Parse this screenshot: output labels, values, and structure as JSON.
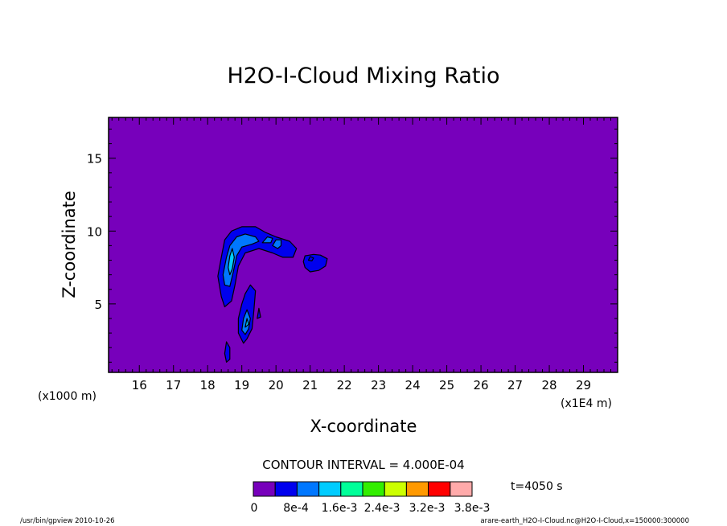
{
  "chart_data": {
    "type": "contour",
    "title": "H2O-I-Cloud Mixing Ratio",
    "xlabel": "X-coordinate",
    "ylabel": "Z-coordinate",
    "x_unit_label": "(x1E4 m)",
    "y_unit_label": "(x1000 m)",
    "xlim": [
      15.1,
      30.0
    ],
    "ylim": [
      0.3,
      17.8
    ],
    "x_ticks": [
      "16",
      "17",
      "18",
      "19",
      "20",
      "21",
      "22",
      "23",
      "24",
      "25",
      "26",
      "27",
      "28",
      "29"
    ],
    "y_ticks": [
      "5",
      "10",
      "15"
    ],
    "contour_interval_text": "CONTOUR INTERVAL = 4.000E-04",
    "time_text": "t=4050 s",
    "footer_left": "/usr/bin/gpview  2010-10-26",
    "footer_right": "arare-earth_H2O-I-Cloud.nc@H2O-I-Cloud,x=150000:300000",
    "colorbar_labels": [
      "0",
      "8e-4",
      "1.6e-3",
      "2.4e-3",
      "3.2e-3",
      "3.8e-3"
    ],
    "colors": {
      "background_level": "#7700bb",
      "levels": [
        "#7700bb",
        "#0000ee",
        "#0077ff",
        "#00ccff",
        "#00ff99",
        "#33ee00",
        "#ccff00",
        "#ff9900",
        "#ff0000",
        "#ffaaaa"
      ]
    },
    "contour_regions": [
      {
        "level": 1,
        "points": [
          [
            18.4,
            5.5
          ],
          [
            18.3,
            6.9
          ],
          [
            18.4,
            8.2
          ],
          [
            18.5,
            9.4
          ],
          [
            18.7,
            10.0
          ],
          [
            19.0,
            10.3
          ],
          [
            19.4,
            10.3
          ],
          [
            19.7,
            9.9
          ],
          [
            20.0,
            9.6
          ],
          [
            20.4,
            9.3
          ],
          [
            20.6,
            8.8
          ],
          [
            20.5,
            8.2
          ],
          [
            20.2,
            8.2
          ],
          [
            19.9,
            8.5
          ],
          [
            19.5,
            8.8
          ],
          [
            19.1,
            8.5
          ],
          [
            18.9,
            7.6
          ],
          [
            18.8,
            6.3
          ],
          [
            18.7,
            5.2
          ],
          [
            18.5,
            4.8
          ]
        ]
      },
      {
        "level": 1,
        "points": [
          [
            18.9,
            3.0
          ],
          [
            18.9,
            4.0
          ],
          [
            19.0,
            5.0
          ],
          [
            19.1,
            5.7
          ],
          [
            19.25,
            6.3
          ],
          [
            19.4,
            5.9
          ],
          [
            19.35,
            4.5
          ],
          [
            19.3,
            3.3
          ],
          [
            19.15,
            2.6
          ],
          [
            19.05,
            2.3
          ]
        ]
      },
      {
        "level": 1,
        "points": [
          [
            18.55,
            1.0
          ],
          [
            18.5,
            1.6
          ],
          [
            18.55,
            2.4
          ],
          [
            18.65,
            2.0
          ],
          [
            18.65,
            1.2
          ]
        ]
      },
      {
        "level": 1,
        "points": [
          [
            20.8,
            7.9
          ],
          [
            20.85,
            8.3
          ],
          [
            21.1,
            8.4
          ],
          [
            21.3,
            8.35
          ],
          [
            21.5,
            8.1
          ],
          [
            21.45,
            7.6
          ],
          [
            21.25,
            7.3
          ],
          [
            21.0,
            7.2
          ],
          [
            20.85,
            7.5
          ]
        ]
      },
      {
        "level": 1,
        "points": [
          [
            19.45,
            4.0
          ],
          [
            19.5,
            4.7
          ],
          [
            19.55,
            4.1
          ]
        ]
      },
      {
        "level": 2,
        "points": [
          [
            18.45,
            7.0
          ],
          [
            18.55,
            8.2
          ],
          [
            18.65,
            9.0
          ],
          [
            18.85,
            9.6
          ],
          [
            19.1,
            9.8
          ],
          [
            19.4,
            9.6
          ],
          [
            19.5,
            9.3
          ],
          [
            19.3,
            9.1
          ],
          [
            19.0,
            8.9
          ],
          [
            18.85,
            8.3
          ],
          [
            18.75,
            7.2
          ],
          [
            18.65,
            6.2
          ],
          [
            18.5,
            6.3
          ]
        ]
      },
      {
        "level": 2,
        "points": [
          [
            19.6,
            9.2
          ],
          [
            19.75,
            9.6
          ],
          [
            19.9,
            9.5
          ],
          [
            19.85,
            9.2
          ]
        ]
      },
      {
        "level": 2,
        "points": [
          [
            19.9,
            9.0
          ],
          [
            20.0,
            9.4
          ],
          [
            20.15,
            9.4
          ],
          [
            20.15,
            9.0
          ],
          [
            20.05,
            8.8
          ]
        ]
      },
      {
        "level": 2,
        "points": [
          [
            19.0,
            3.2
          ],
          [
            19.05,
            4.0
          ],
          [
            19.15,
            4.6
          ],
          [
            19.25,
            4.0
          ],
          [
            19.2,
            3.3
          ],
          [
            19.1,
            2.9
          ]
        ]
      },
      {
        "level": 3,
        "points": [
          [
            18.6,
            7.5
          ],
          [
            18.65,
            8.3
          ],
          [
            18.72,
            8.8
          ],
          [
            18.78,
            8.2
          ],
          [
            18.72,
            7.4
          ],
          [
            18.65,
            7.0
          ]
        ]
      },
      {
        "level": 3,
        "points": [
          [
            19.1,
            3.4
          ],
          [
            19.15,
            4.0
          ],
          [
            19.2,
            3.6
          ]
        ]
      },
      {
        "level": 1,
        "points": [
          [
            20.95,
            8.0
          ],
          [
            21.0,
            8.25
          ],
          [
            21.1,
            8.15
          ],
          [
            21.05,
            7.95
          ]
        ]
      }
    ]
  }
}
